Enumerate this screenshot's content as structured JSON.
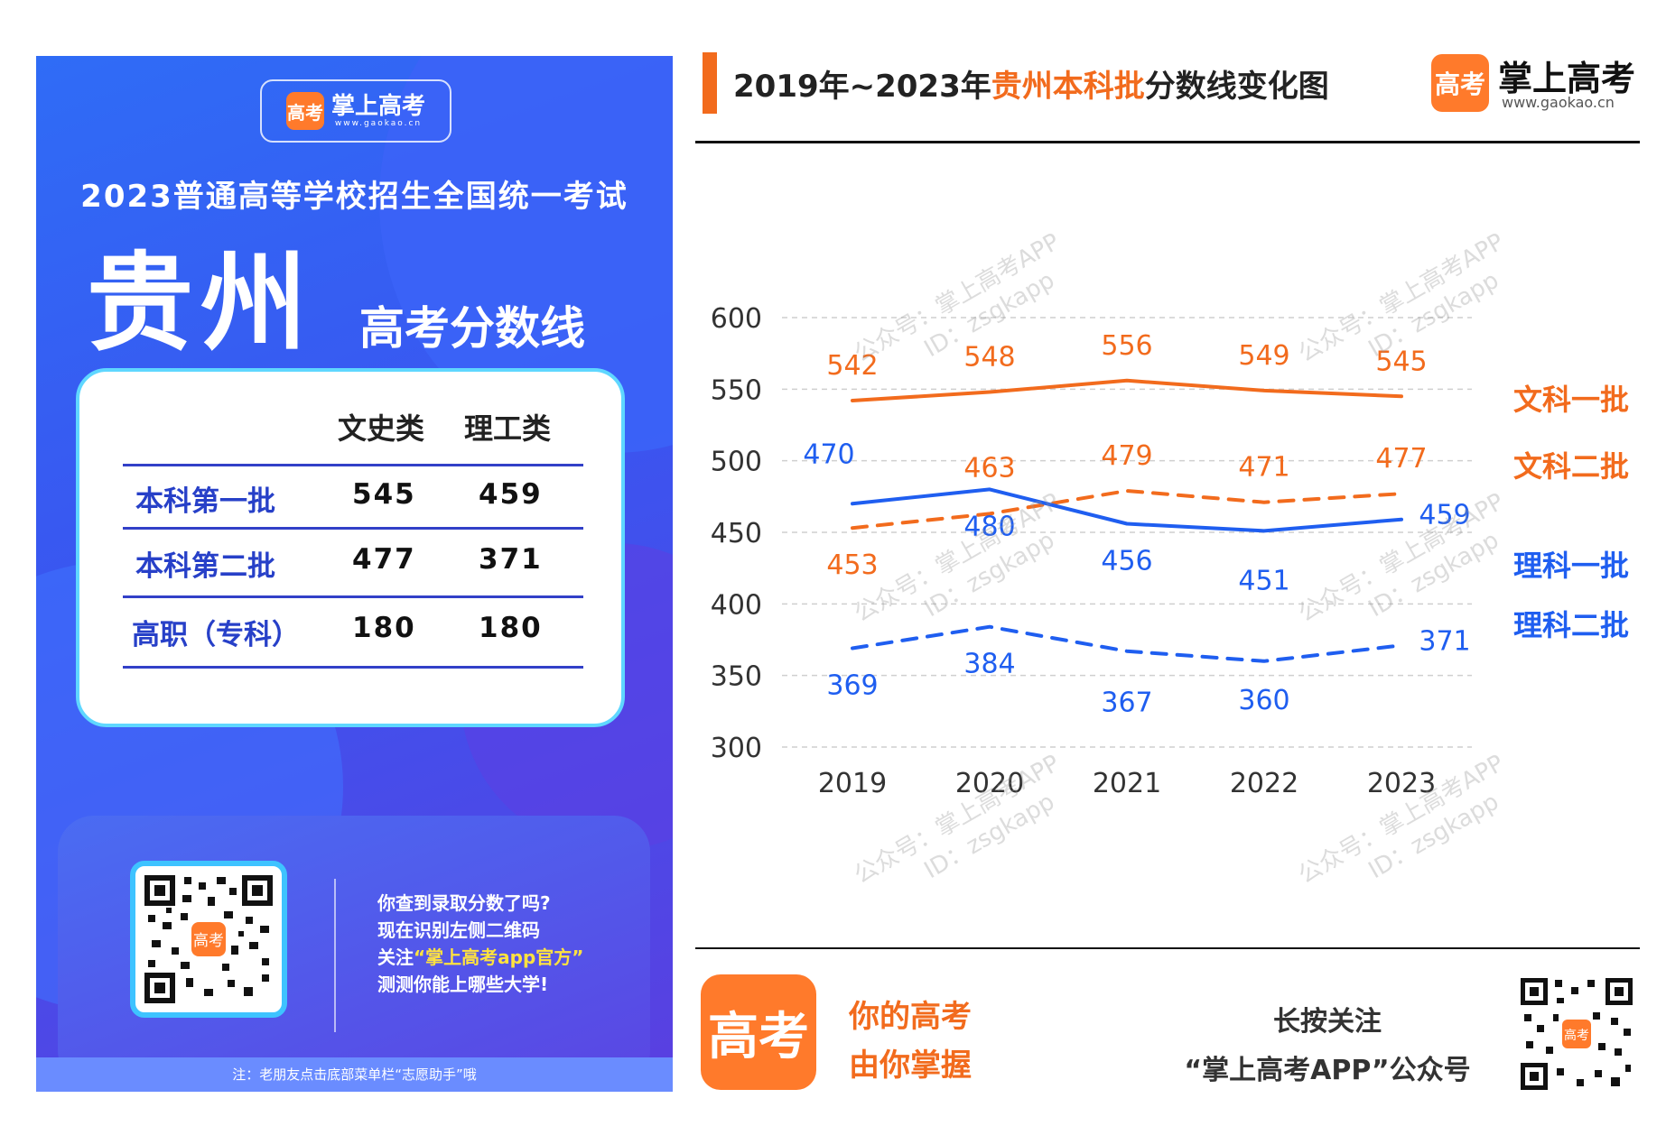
{
  "poster": {
    "brand": "掌上高考",
    "brand_mark": "高考",
    "url": "www.gaokao.cn",
    "exam_title": "2023普通高等学校招生全国统一考试",
    "province": "贵州",
    "subtitle": "高考分数线",
    "table": {
      "headers": [
        "文史类",
        "理工类"
      ],
      "rows": [
        {
          "label": "本科第一批",
          "wenshi": "545",
          "ligong": "459"
        },
        {
          "label": "本科第二批",
          "wenshi": "477",
          "ligong": "371"
        },
        {
          "label": "高职（专科）",
          "wenshi": "180",
          "ligong": "180"
        }
      ]
    },
    "promo": {
      "line1": "你查到录取分数了吗?",
      "line2": "现在识别左侧二维码",
      "line3_pre": "关注",
      "line3_hl": "“掌上高考app官方”",
      "line4": "测测你能上哪些大学!"
    },
    "footnote": "注：老朋友点击底部菜单栏“志愿助手”哦"
  },
  "header": {
    "title_pre": "2019年~2023年",
    "title_hl": "贵州本科批",
    "title_post": "分数线变化图",
    "brand": "掌上高考",
    "brand_mark": "高考",
    "url": "www.gaokao.cn"
  },
  "watermark": {
    "line1": "公众号：掌上高考APP",
    "line2": "ID：zsgkapp"
  },
  "chart_data": {
    "type": "line",
    "x": [
      "2019",
      "2020",
      "2021",
      "2022",
      "2023"
    ],
    "ylim": [
      300,
      600
    ],
    "yticks": [
      300,
      350,
      400,
      450,
      500,
      550,
      600
    ],
    "grid": true,
    "series": [
      {
        "name": "文科一批",
        "values": [
          542,
          548,
          556,
          549,
          545
        ],
        "color": "#f26b1d",
        "dash": false
      },
      {
        "name": "文科二批",
        "values": [
          453,
          463,
          479,
          471,
          477
        ],
        "color": "#f26b1d",
        "dash": true
      },
      {
        "name": "理科一批",
        "values": [
          470,
          480,
          456,
          451,
          459
        ],
        "color": "#1f5ef0",
        "dash": false
      },
      {
        "name": "理科二批",
        "values": [
          369,
          384,
          367,
          360,
          371
        ],
        "color": "#1f5ef0",
        "dash": true
      }
    ]
  },
  "footer": {
    "logo_mark": "高考",
    "slogan1": "你的高考",
    "slogan2": "由你掌握",
    "follow1": "长按关注",
    "follow2": "“掌上高考APP”公众号",
    "qr_mark": "高考"
  }
}
